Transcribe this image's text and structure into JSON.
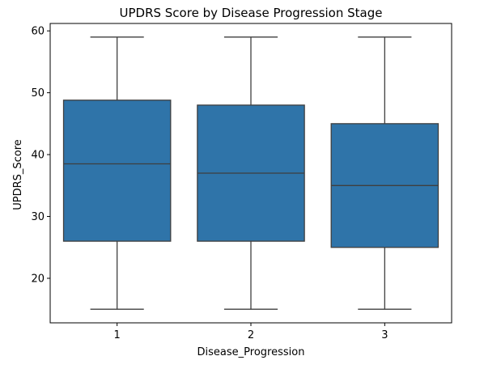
{
  "chart_data": {
    "type": "box",
    "title": "UPDRS Score by Disease Progression Stage",
    "xlabel": "Disease_Progression",
    "ylabel": "UPDRS_Score",
    "categories": [
      "1",
      "2",
      "3"
    ],
    "ylim": [
      12.8,
      61.2
    ],
    "yticks": [
      20,
      30,
      40,
      50,
      60
    ],
    "grid": false,
    "box_color": "#2f74a9",
    "line_color": "#3f3f3f",
    "boxes": [
      {
        "category": "1",
        "whisker_low": 15,
        "q1": 26,
        "median": 38.5,
        "q3": 48.8,
        "whisker_high": 59
      },
      {
        "category": "2",
        "whisker_low": 15,
        "q1": 26,
        "median": 37,
        "q3": 48,
        "whisker_high": 59
      },
      {
        "category": "3",
        "whisker_low": 15,
        "q1": 25,
        "median": 35,
        "q3": 45,
        "whisker_high": 59
      }
    ]
  }
}
